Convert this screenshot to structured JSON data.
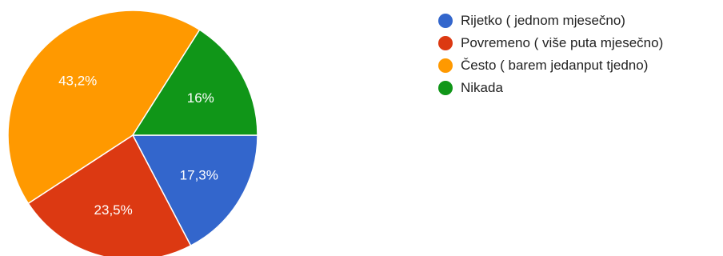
{
  "chart_data": {
    "type": "pie",
    "title": "",
    "start_angle_deg": 0,
    "direction": "clockwise",
    "legend_position": "right",
    "slices": [
      {
        "label": "Rijetko ( jednom mjesečno)",
        "value": 17.3,
        "display": "17,3%",
        "color": "#3366cc"
      },
      {
        "label": "Povremeno ( više puta mjesečno)",
        "value": 23.5,
        "display": "23,5%",
        "color": "#dc3912"
      },
      {
        "label": "Često ( barem jedanput tjedno)",
        "value": 43.2,
        "display": "43,2%",
        "color": "#ff9900"
      },
      {
        "label": "Nikada",
        "value": 16,
        "display": "16%",
        "color": "#109618"
      }
    ]
  }
}
